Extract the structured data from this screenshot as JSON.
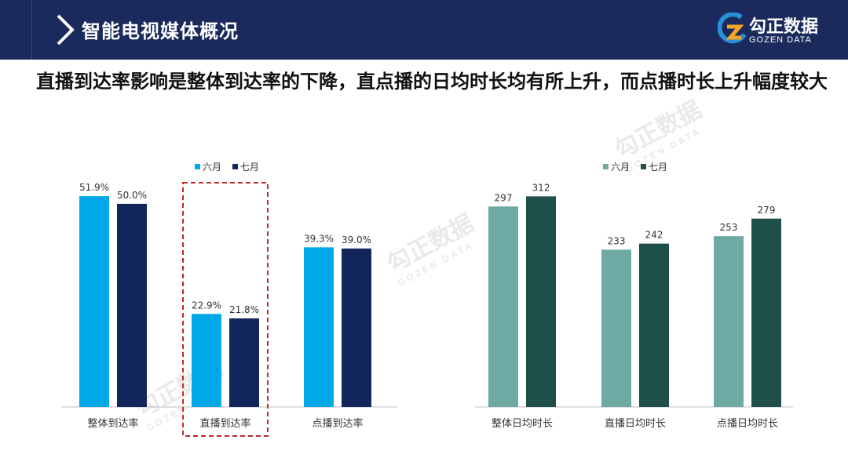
{
  "header": {
    "title": "智能电视媒体概况"
  },
  "logo": {
    "text": "勾正数据",
    "sub": "GOZEN DATA"
  },
  "heading": "直播到达率影响是整体到达率的下降，直点播的日均时长均有所上升，而点播时长上升幅度较大",
  "colors": {
    "topbar": "#1b2a5c",
    "left_june": "#00a8e8",
    "left_july": "#13265b",
    "right_june": "#6fa9a4",
    "right_july": "#1e5049",
    "highlight": "#c0282a"
  },
  "chart_data": [
    {
      "type": "bar",
      "categories": [
        "整体到达率",
        "直播到达率",
        "点播到达率"
      ],
      "series": [
        {
          "name": "六月",
          "values": [
            51.9,
            22.9,
            39.3
          ],
          "labels": [
            "51.9%",
            "22.9%",
            "39.3%"
          ]
        },
        {
          "name": "七月",
          "values": [
            50.0,
            21.8,
            39.0
          ],
          "labels": [
            "50.0%",
            "21.8%",
            "39.0%"
          ]
        }
      ],
      "highlighted_category": "直播到达率",
      "legend": "top",
      "ylim": [
        0,
        55
      ],
      "grid": false
    },
    {
      "type": "bar",
      "categories": [
        "整体日均时长",
        "直播日均时长",
        "点播日均时长"
      ],
      "series": [
        {
          "name": "六月",
          "values": [
            297,
            233,
            253
          ],
          "labels": [
            "297",
            "233",
            "253"
          ]
        },
        {
          "name": "七月",
          "values": [
            312,
            242,
            279
          ],
          "labels": [
            "312",
            "242",
            "279"
          ]
        }
      ],
      "legend": "top-right",
      "ylim": [
        0,
        331
      ],
      "grid": false
    }
  ]
}
